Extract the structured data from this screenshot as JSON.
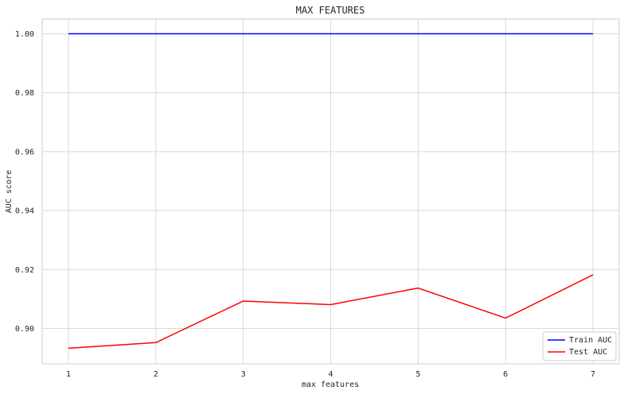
{
  "chart_data": {
    "type": "line",
    "title": "MAX FEATURES",
    "xlabel": "max features",
    "ylabel": "AUC score",
    "x": [
      1,
      2,
      3,
      4,
      5,
      6,
      7
    ],
    "xticks": [
      "1",
      "2",
      "3",
      "4",
      "5",
      "6",
      "7"
    ],
    "yticks": [
      "0.90",
      "0.92",
      "0.94",
      "0.96",
      "0.98",
      "1.00"
    ],
    "xlim": [
      0.7,
      7.3
    ],
    "ylim": [
      0.888,
      1.005
    ],
    "grid": true,
    "legend_position": "bottom-right",
    "series": [
      {
        "name": "Train AUC",
        "color": "#0000ff",
        "values": [
          1.0,
          1.0,
          1.0,
          1.0,
          1.0,
          1.0,
          1.0
        ]
      },
      {
        "name": "Test AUC",
        "color": "#ff0000",
        "values": [
          0.8933,
          0.8952,
          0.9093,
          0.9081,
          0.9137,
          0.9035,
          0.9182
        ]
      }
    ]
  }
}
